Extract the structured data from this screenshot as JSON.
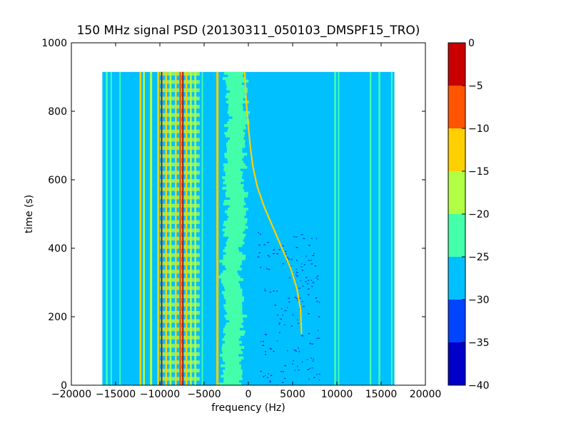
{
  "chart_data": {
    "type": "heatmap",
    "title": "150 MHz signal PSD (20130311_050103_DMSPF15_TRO)",
    "xlabel": "frequency (Hz)",
    "ylabel": "time (s)",
    "xlim": [
      -20000,
      20000
    ],
    "ylim": [
      0,
      1000
    ],
    "x_ticks": [
      -20000,
      -15000,
      -10000,
      -5000,
      0,
      5000,
      10000,
      15000,
      20000
    ],
    "x_tick_labels": [
      "−20000",
      "−15000",
      "−10000",
      "−5000",
      "0",
      "5000",
      "10000",
      "15000",
      "20000"
    ],
    "y_ticks": [
      0,
      200,
      400,
      600,
      800,
      1000
    ],
    "y_tick_labels": [
      "0",
      "200",
      "400",
      "600",
      "800",
      "1000"
    ],
    "data_extent": {
      "freq_min": -16500,
      "freq_max": 16500,
      "time_min": 0,
      "time_max": 915
    },
    "background_level": -28,
    "colorbar": {
      "range": [
        -40,
        0
      ],
      "ticks": [
        0,
        -5,
        -10,
        -15,
        -20,
        -25,
        -30,
        -35,
        -40
      ],
      "tick_labels": [
        "0",
        "−5",
        "−10",
        "−15",
        "−20",
        "−25",
        "−30",
        "−35",
        "−40"
      ],
      "levels": [
        {
          "from": -40,
          "to": -35,
          "color": "#0000c8"
        },
        {
          "from": -35,
          "to": -30,
          "color": "#0044ff"
        },
        {
          "from": -30,
          "to": -25,
          "color": "#00c0ff"
        },
        {
          "from": -25,
          "to": -20,
          "color": "#44ffaa"
        },
        {
          "from": -20,
          "to": -15,
          "color": "#b0ff44"
        },
        {
          "from": -15,
          "to": -10,
          "color": "#ffd000"
        },
        {
          "from": -10,
          "to": -5,
          "color": "#ff5500"
        },
        {
          "from": -5,
          "to": 0,
          "color": "#c80000"
        }
      ]
    },
    "static_lines": [
      {
        "freq": -16000,
        "width": 200,
        "level": -22
      },
      {
        "freq": -15500,
        "width": 150,
        "level": -22
      },
      {
        "freq": -14500,
        "width": 150,
        "level": -22
      },
      {
        "freq": -12200,
        "width": 200,
        "level": -14
      },
      {
        "freq": -11800,
        "width": 200,
        "level": -18
      },
      {
        "freq": -11000,
        "width": 250,
        "level": -18
      },
      {
        "freq": -10200,
        "width": 200,
        "level": -12
      },
      {
        "freq": -9800,
        "width": 150,
        "level": -3
      },
      {
        "freq": -9300,
        "width": 200,
        "level": -14
      },
      {
        "freq": -8800,
        "width": 200,
        "level": -18
      },
      {
        "freq": -8200,
        "width": 200,
        "level": -12
      },
      {
        "freq": -7700,
        "width": 200,
        "level": -8
      },
      {
        "freq": -7400,
        "width": 150,
        "level": -3
      },
      {
        "freq": -7000,
        "width": 200,
        "level": -14
      },
      {
        "freq": -6500,
        "width": 200,
        "level": -18
      },
      {
        "freq": -6000,
        "width": 200,
        "level": -18
      },
      {
        "freq": -5200,
        "width": 150,
        "level": -22
      },
      {
        "freq": -3500,
        "width": 250,
        "level": -14
      },
      {
        "freq": 9800,
        "width": 200,
        "level": -22
      },
      {
        "freq": 10200,
        "width": 150,
        "level": -22
      },
      {
        "freq": 13800,
        "width": 200,
        "level": -22
      },
      {
        "freq": 14800,
        "width": 200,
        "level": -22
      },
      {
        "freq": 16200,
        "width": 150,
        "level": -22
      }
    ],
    "noise_band": {
      "center_points": [
        {
          "time": 0,
          "freq": -1800
        },
        {
          "time": 100,
          "freq": -2000
        },
        {
          "time": 200,
          "freq": -1500
        },
        {
          "time": 300,
          "freq": -2000
        },
        {
          "time": 400,
          "freq": -1700
        },
        {
          "time": 500,
          "freq": -1200
        },
        {
          "time": 600,
          "freq": -1800
        },
        {
          "time": 700,
          "freq": -1500
        },
        {
          "time": 800,
          "freq": -1200
        },
        {
          "time": 915,
          "freq": -1500
        }
      ],
      "width": 2200,
      "level": -22
    },
    "doppler_trace": {
      "level": -15,
      "points": [
        {
          "time": 915,
          "freq": -400
        },
        {
          "time": 850,
          "freq": -300
        },
        {
          "time": 780,
          "freq": -100
        },
        {
          "time": 700,
          "freq": 200
        },
        {
          "time": 640,
          "freq": 500
        },
        {
          "time": 580,
          "freq": 1000
        },
        {
          "time": 520,
          "freq": 1800
        },
        {
          "time": 460,
          "freq": 2800
        },
        {
          "time": 400,
          "freq": 3800
        },
        {
          "time": 340,
          "freq": 4800
        },
        {
          "time": 280,
          "freq": 5500
        },
        {
          "time": 220,
          "freq": 5900
        },
        {
          "time": 150,
          "freq": 6000
        }
      ]
    },
    "stripes": {
      "freq_min": -10000,
      "freq_max": -5500,
      "count": 38,
      "level": -20
    },
    "dark_speckle": {
      "freq_min": 1000,
      "freq_max": 8000,
      "time_min": 0,
      "time_max": 450,
      "count": 160,
      "level": -33
    }
  }
}
